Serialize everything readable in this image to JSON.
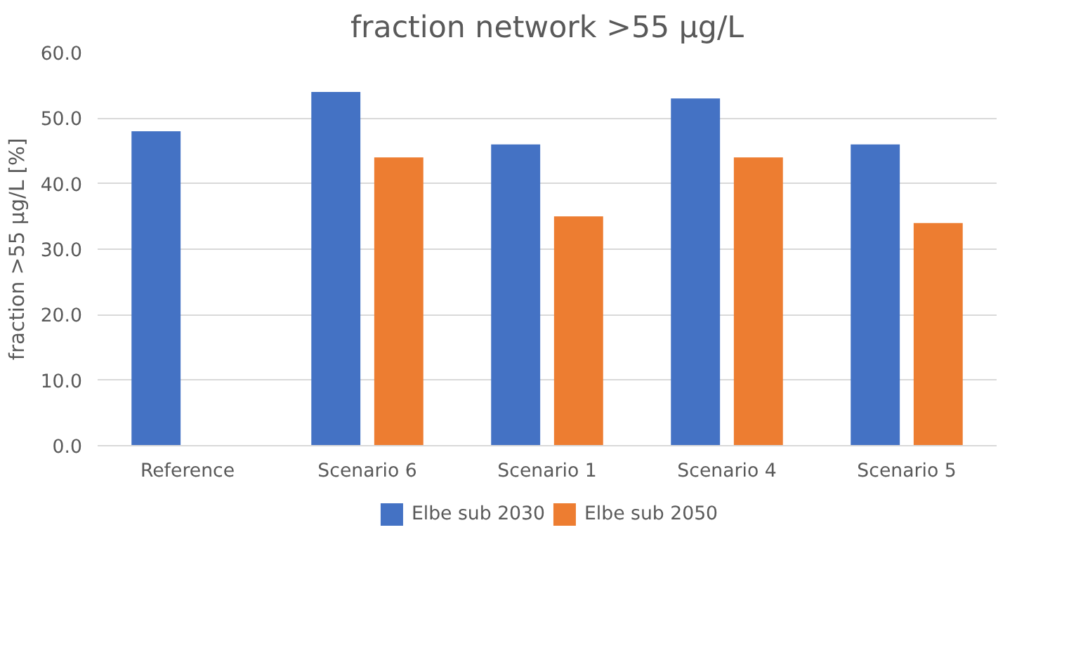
{
  "chart_data": {
    "type": "bar",
    "title": "fraction network >55 µg/L",
    "ylabel": "fraction >55 µg/L [%]",
    "categories": [
      "Reference",
      "Scenario 6",
      "Scenario 1",
      "Scenario 4",
      "Scenario 5"
    ],
    "series": [
      {
        "name": "Elbe sub 2030",
        "color": "#4472c4",
        "values": [
          48,
          54,
          46,
          53,
          46
        ]
      },
      {
        "name": "Elbe sub 2050",
        "color": "#ed7d31",
        "values": [
          null,
          44,
          35,
          44,
          34
        ]
      }
    ],
    "ylim": [
      0,
      60
    ],
    "yticks": [
      {
        "value": 0,
        "label": "0.0"
      },
      {
        "value": 10,
        "label": "10.0"
      },
      {
        "value": 20,
        "label": "20.0"
      },
      {
        "value": 30,
        "label": "30.0"
      },
      {
        "value": 40,
        "label": "40.0"
      },
      {
        "value": 50,
        "label": "50.0"
      },
      {
        "value": 60,
        "label": "60.0"
      }
    ],
    "grid": "y",
    "legend": "bottom"
  }
}
